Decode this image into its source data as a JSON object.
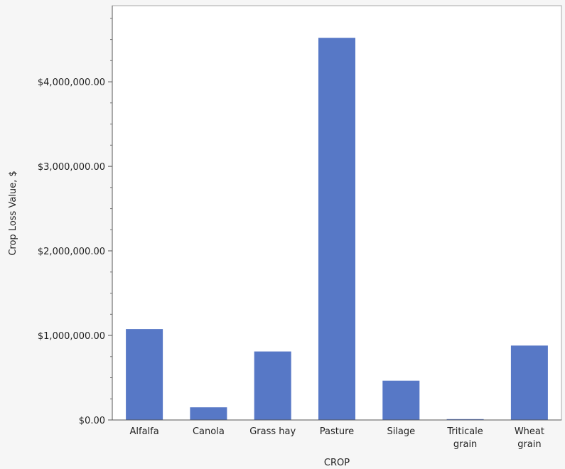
{
  "chart_data": {
    "type": "bar",
    "title": "",
    "xlabel": "CROP",
    "ylabel": "Crop Loss Value, $",
    "categories": [
      [
        "Alfalfa"
      ],
      [
        "Canola"
      ],
      [
        "Grass hay"
      ],
      [
        "Pasture"
      ],
      [
        "Silage"
      ],
      [
        "Triticale",
        "grain"
      ],
      [
        "Wheat",
        "grain"
      ]
    ],
    "values": [
      1075000,
      150000,
      810000,
      4520000,
      465000,
      10000,
      880000
    ],
    "ylim": [
      0,
      4900000
    ],
    "yticks": [
      0,
      1000000,
      2000000,
      3000000,
      4000000
    ],
    "ytick_labels": [
      "$0.00",
      "$1,000,000.00",
      "$2,000,000.00",
      "$3,000,000.00",
      "$4,000,000.00"
    ],
    "grid": false,
    "legend": "none",
    "bar_color": "#5778c6",
    "plot_background": "#ffffff",
    "page_background": "#f6f6f6"
  }
}
